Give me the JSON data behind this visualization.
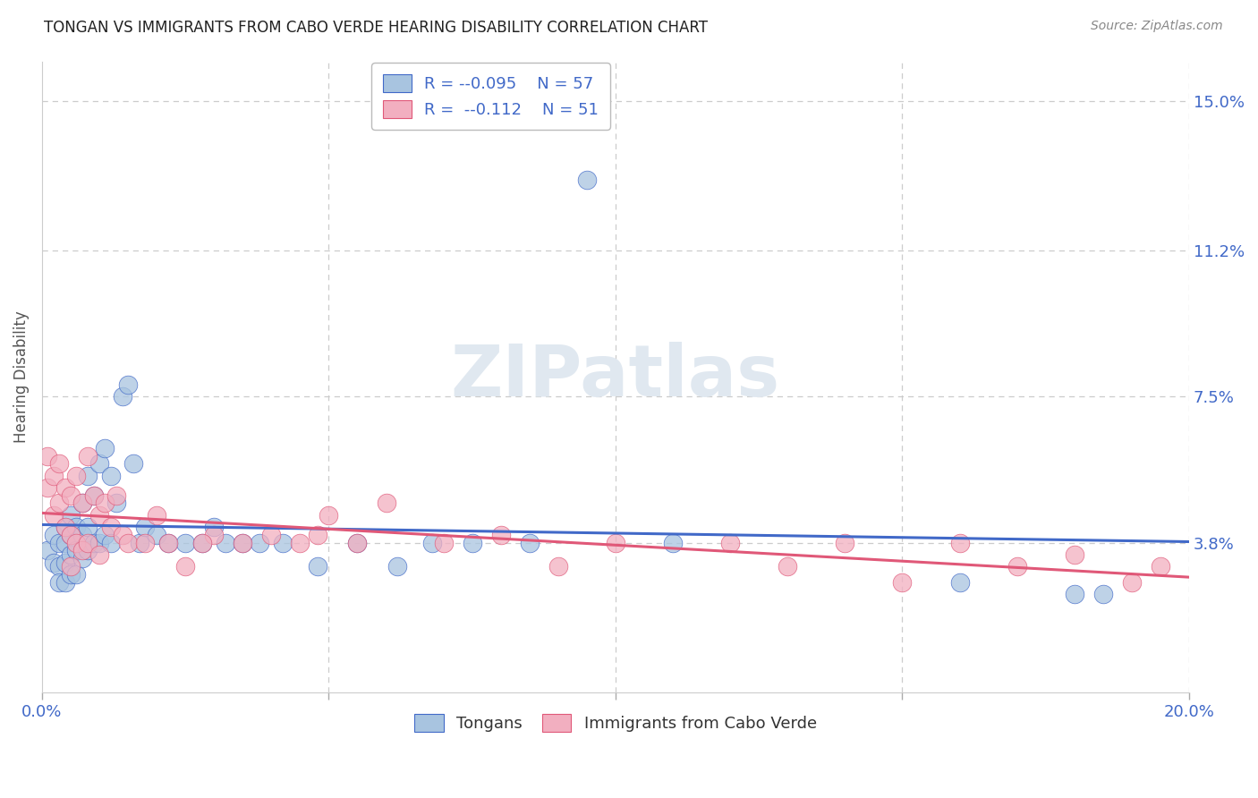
{
  "title": "TONGAN VS IMMIGRANTS FROM CABO VERDE HEARING DISABILITY CORRELATION CHART",
  "source": "Source: ZipAtlas.com",
  "ylabel": "Hearing Disability",
  "xlim": [
    0.0,
    0.2
  ],
  "ylim": [
    0.0,
    0.16
  ],
  "legend_R1": "-0.095",
  "legend_N1": "57",
  "legend_R2": "-0.112",
  "legend_N2": "51",
  "tongan_color": "#a8c4e0",
  "cabo_verde_color": "#f2afc0",
  "trendline_tongan_color": "#4169c8",
  "trendline_cabo_color": "#e05878",
  "background_color": "#ffffff",
  "grid_color": "#cccccc",
  "watermark_color": "#e0e8f0",
  "tongan_x": [
    0.001,
    0.002,
    0.002,
    0.003,
    0.003,
    0.003,
    0.004,
    0.004,
    0.004,
    0.004,
    0.005,
    0.005,
    0.005,
    0.005,
    0.006,
    0.006,
    0.006,
    0.007,
    0.007,
    0.007,
    0.008,
    0.008,
    0.008,
    0.009,
    0.009,
    0.01,
    0.01,
    0.011,
    0.011,
    0.012,
    0.012,
    0.013,
    0.014,
    0.015,
    0.016,
    0.017,
    0.018,
    0.02,
    0.022,
    0.025,
    0.028,
    0.03,
    0.032,
    0.035,
    0.038,
    0.042,
    0.048,
    0.055,
    0.062,
    0.068,
    0.075,
    0.085,
    0.095,
    0.11,
    0.16,
    0.18,
    0.185
  ],
  "tongan_y": [
    0.036,
    0.04,
    0.033,
    0.038,
    0.032,
    0.028,
    0.042,
    0.038,
    0.033,
    0.028,
    0.045,
    0.04,
    0.035,
    0.03,
    0.042,
    0.036,
    0.03,
    0.048,
    0.04,
    0.034,
    0.055,
    0.042,
    0.036,
    0.05,
    0.038,
    0.058,
    0.038,
    0.062,
    0.04,
    0.055,
    0.038,
    0.048,
    0.075,
    0.078,
    0.058,
    0.038,
    0.042,
    0.04,
    0.038,
    0.038,
    0.038,
    0.042,
    0.038,
    0.038,
    0.038,
    0.038,
    0.032,
    0.038,
    0.032,
    0.038,
    0.038,
    0.038,
    0.13,
    0.038,
    0.028,
    0.025,
    0.025
  ],
  "cabo_x": [
    0.001,
    0.001,
    0.002,
    0.002,
    0.003,
    0.003,
    0.004,
    0.004,
    0.005,
    0.005,
    0.005,
    0.006,
    0.006,
    0.007,
    0.007,
    0.008,
    0.008,
    0.009,
    0.01,
    0.01,
    0.011,
    0.012,
    0.013,
    0.014,
    0.015,
    0.018,
    0.02,
    0.025,
    0.03,
    0.035,
    0.04,
    0.05,
    0.055,
    0.06,
    0.07,
    0.08,
    0.09,
    0.1,
    0.12,
    0.13,
    0.14,
    0.15,
    0.16,
    0.17,
    0.18,
    0.19,
    0.195,
    0.048,
    0.045,
    0.028,
    0.022
  ],
  "cabo_y": [
    0.06,
    0.052,
    0.055,
    0.045,
    0.058,
    0.048,
    0.052,
    0.042,
    0.05,
    0.04,
    0.032,
    0.055,
    0.038,
    0.048,
    0.036,
    0.06,
    0.038,
    0.05,
    0.045,
    0.035,
    0.048,
    0.042,
    0.05,
    0.04,
    0.038,
    0.038,
    0.045,
    0.032,
    0.04,
    0.038,
    0.04,
    0.045,
    0.038,
    0.048,
    0.038,
    0.04,
    0.032,
    0.038,
    0.038,
    0.032,
    0.038,
    0.028,
    0.038,
    0.032,
    0.035,
    0.028,
    0.032,
    0.04,
    0.038,
    0.038,
    0.038
  ]
}
